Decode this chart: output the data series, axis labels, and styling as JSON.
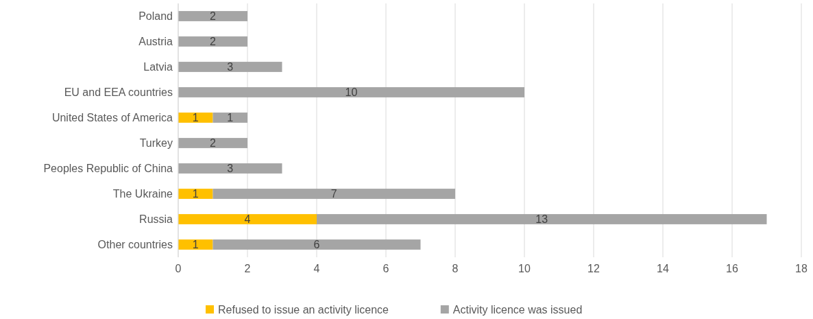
{
  "chart_data": {
    "type": "bar",
    "orientation": "horizontal",
    "stacked": true,
    "categories": [
      "Poland",
      "Austria",
      "Latvia",
      "EU and EEA countries",
      "United States of America",
      "Turkey",
      "Peoples Republic of China",
      "The Ukraine",
      "Russia",
      "Other countries"
    ],
    "series": [
      {
        "name": "Refused to issue an activity licence",
        "color": "#ffc000",
        "values": [
          null,
          null,
          null,
          null,
          1,
          null,
          null,
          1,
          4,
          1
        ]
      },
      {
        "name": "Activity licence was issued",
        "color": "#a5a5a5",
        "values": [
          2,
          2,
          3,
          10,
          1,
          2,
          3,
          7,
          13,
          6
        ]
      }
    ],
    "xlim": [
      0,
      18
    ],
    "xticks": [
      0,
      2,
      4,
      6,
      8,
      10,
      12,
      14,
      16,
      18
    ],
    "grid": "x",
    "legend": "bottom",
    "data_labels": true
  }
}
